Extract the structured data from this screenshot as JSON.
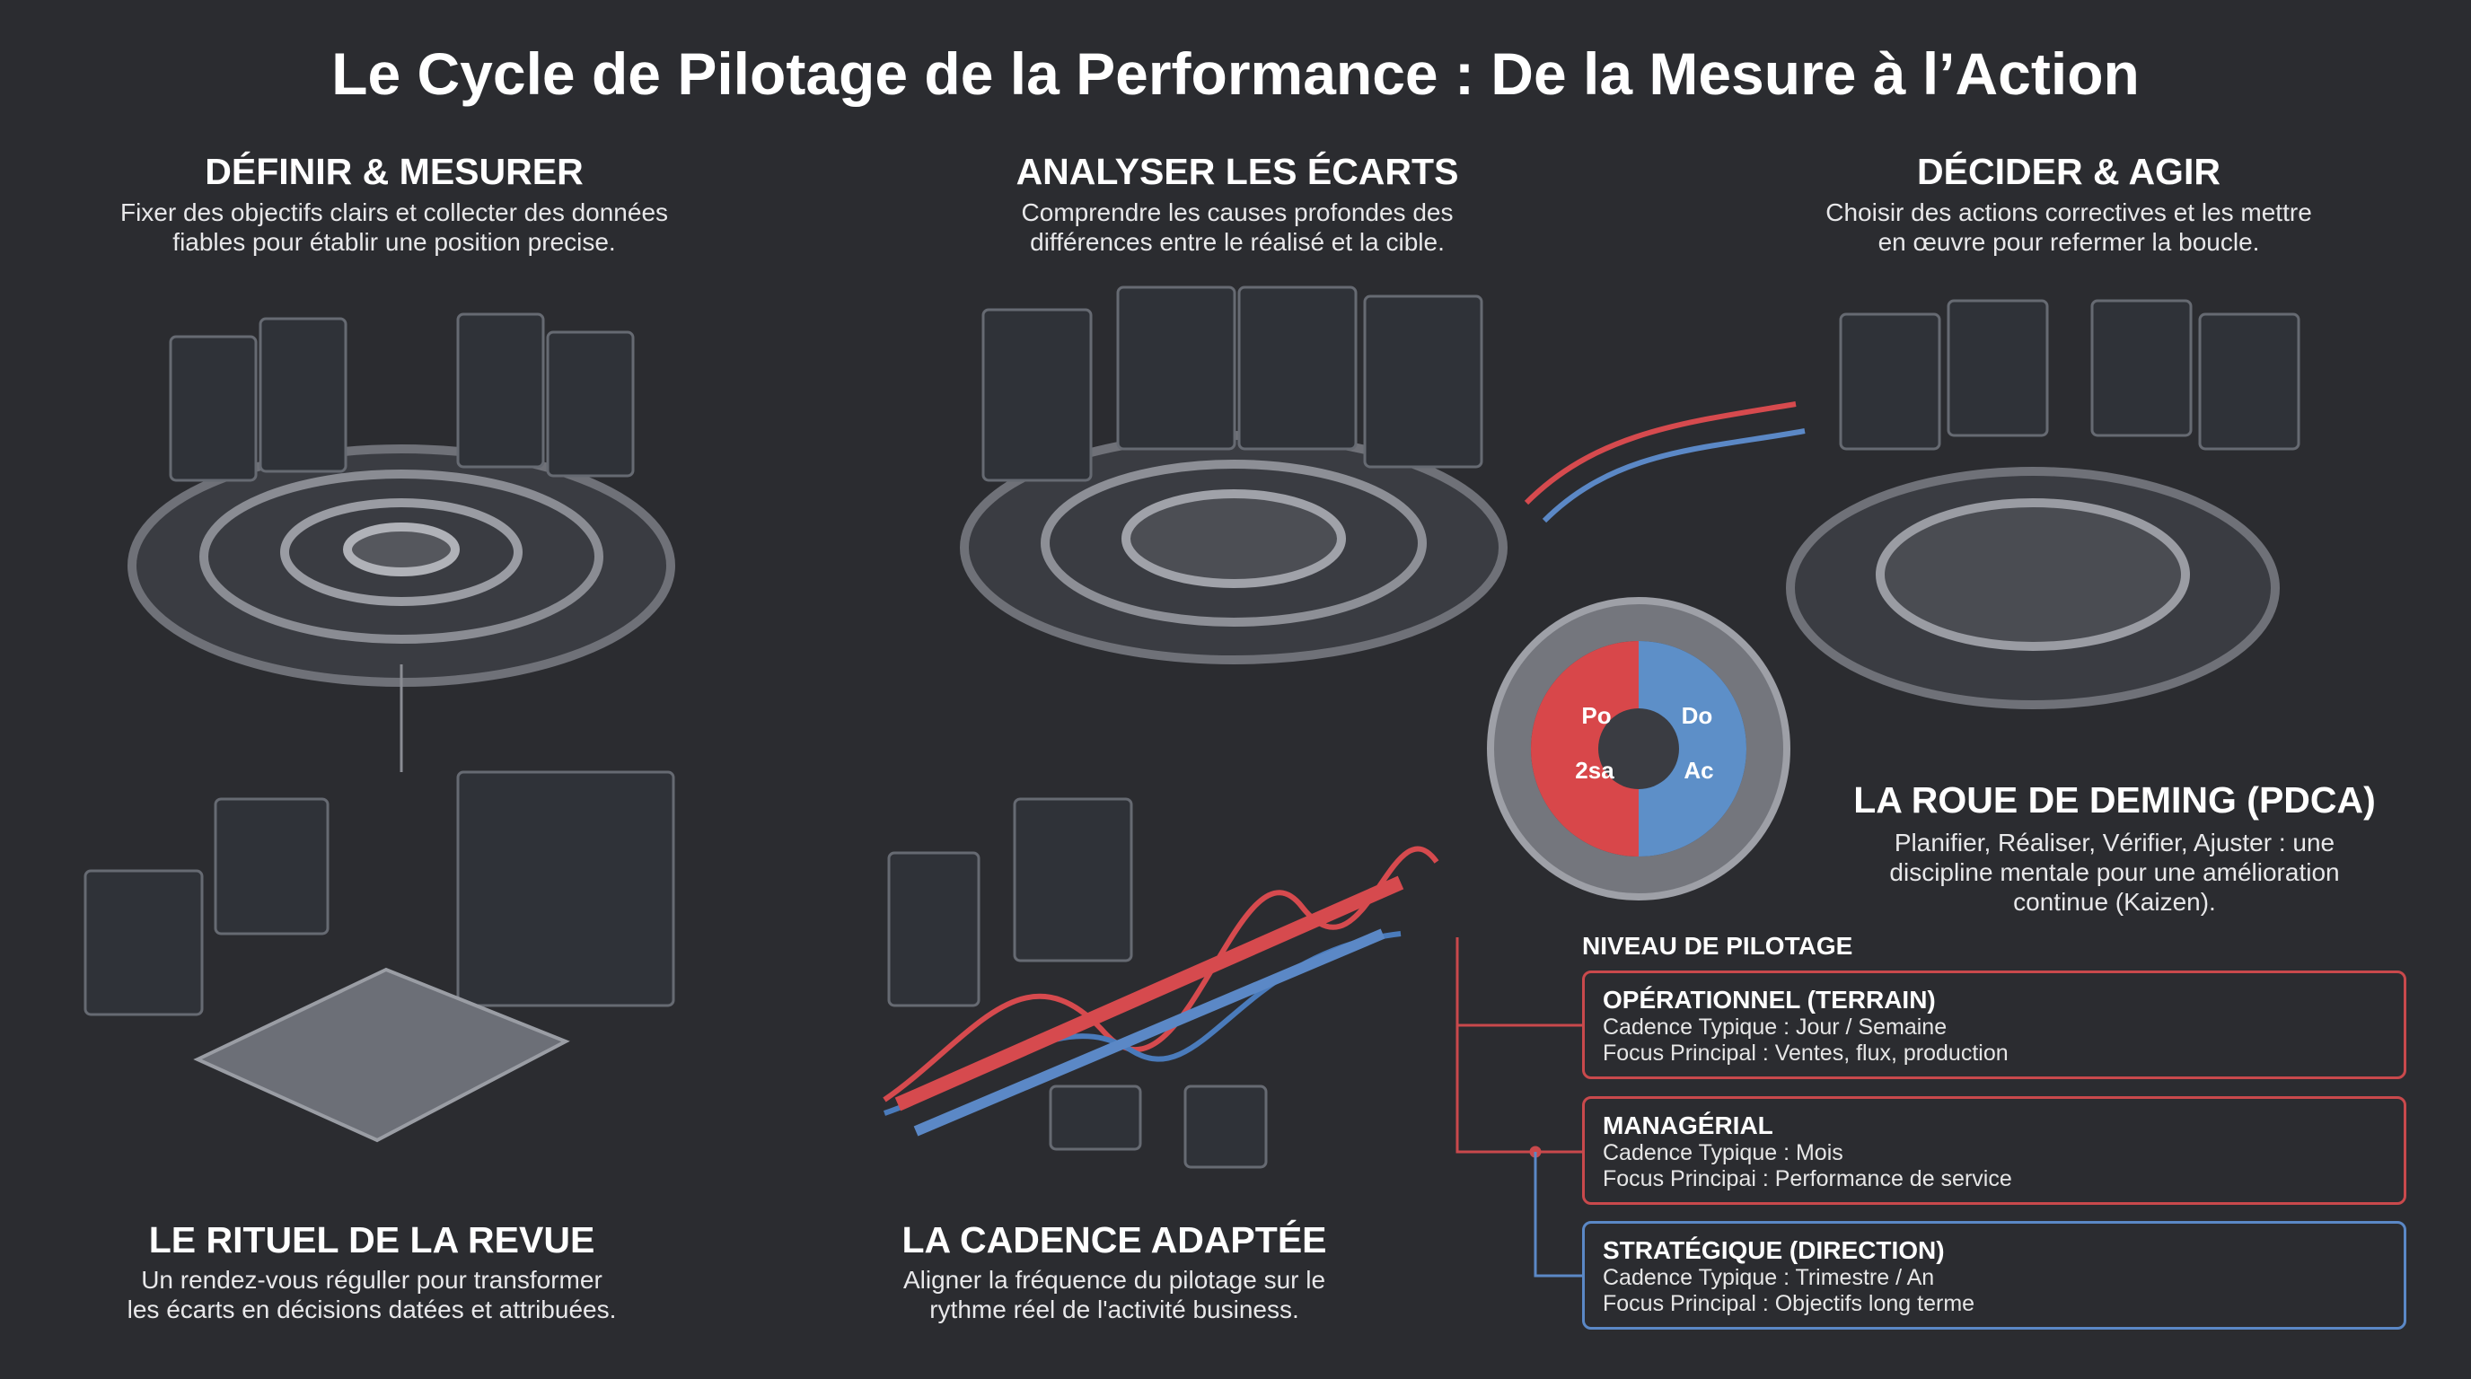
{
  "title": "Le Cycle de Pilotage de la Performance : De la Mesure à l’Action",
  "sections": {
    "define": {
      "title": "DÉFINIR & MESURER",
      "lines": [
        "Fixer des objectifs clairs et collecter des données",
        "fiables pour établir une position precise."
      ]
    },
    "analyze": {
      "title": "ANALYSER LES ÉCARTS",
      "lines": [
        "Comprendre les causes profondes des",
        "différences entre le réalisé et la cible."
      ]
    },
    "decide": {
      "title": "DÉCIDER & AGIR",
      "lines": [
        "Choisir des actions correctives et les mettre",
        "en œuvre pour refermer la boucle."
      ]
    },
    "ritual": {
      "title": "LE RITUEL DE LA REVUE",
      "lines": [
        "Un rendez-vous réguller pour transformer",
        "les écarts en décisions datées et attribuées."
      ]
    },
    "cadence": {
      "title": "LA CADENCE ADAPTÉE",
      "lines": [
        "Aligner la fréquence du pilotage sur le",
        "rythme réel de l'activité business."
      ]
    },
    "deming": {
      "title": "LA ROUE DE DEMING (PDCA)",
      "lines": [
        "Planifier, Réaliser, Vérifier, Ajuster : une",
        "discipline mentale pour une amélioration",
        "continue (Kaizen)."
      ],
      "gear": [
        "Po",
        "Do",
        "2sa",
        "Ac"
      ]
    }
  },
  "levels": {
    "header": "NIVEAU DE PILOTAGE",
    "items": [
      {
        "name": "OPÉRATIONNEL (TERRAIN)",
        "cadence": "Cadence Typique : Jour / Semaine",
        "focus": "Focus Principal : Ventes, flux, production"
      },
      {
        "name": "MANAGÉRIAL",
        "cadence": "Cadence Typique : Mois",
        "focus": "Focus Principai : Performance de service"
      },
      {
        "name": "STRATÉGIQUE (DIRECTION)",
        "cadence": "Cadence Typique : Trimestre / An",
        "focus": "Focus Principal : Objectifs long terme"
      }
    ]
  }
}
